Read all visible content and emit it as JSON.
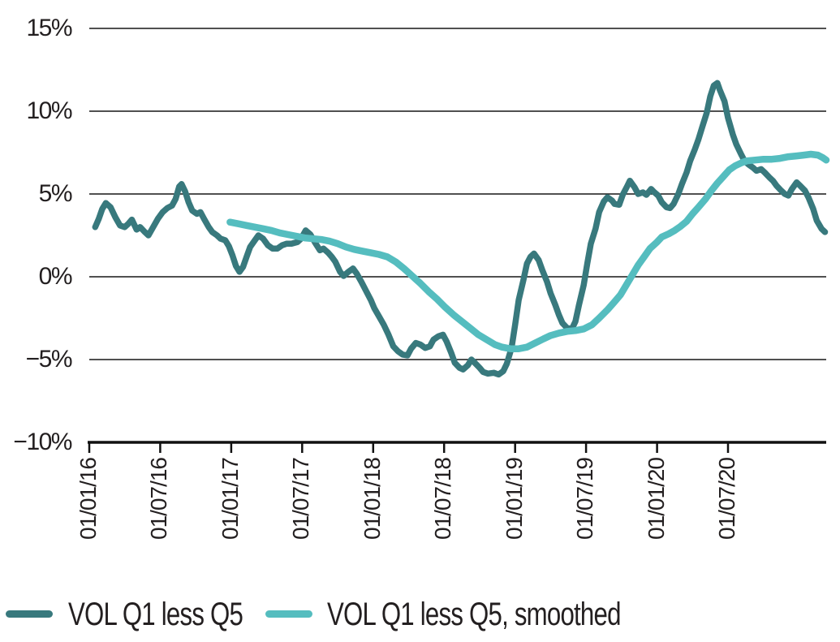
{
  "colors": {
    "background": "#ffffff",
    "grid_line": "#161616",
    "axis_line": "#111111",
    "text": "#231f20",
    "series_raw": "#38797d",
    "series_smoothed": "#55bdbf"
  },
  "legend": {
    "position": "bottom-left"
  },
  "chart_data": {
    "type": "line",
    "title": "",
    "xlabel": "",
    "ylabel": "",
    "grid": "horizontal",
    "legend_position": "bottom-left",
    "x_axis": {
      "unit": "months since 2016-01-01",
      "range_months": [
        0,
        62.3
      ],
      "tick_positions_months": [
        0,
        6,
        12,
        18,
        24,
        30,
        36,
        42,
        48,
        54
      ],
      "tick_labels": [
        "01/01/16",
        "01/07/16",
        "01/01/17",
        "01/07/17",
        "01/01/18",
        "01/07/18",
        "01/01/19",
        "01/07/19",
        "01/01/20",
        "01/07/20"
      ],
      "tick_label_rotation_deg": -90
    },
    "y_axis": {
      "unit": "percent",
      "range": [
        -10,
        15
      ],
      "tick_values": [
        15,
        10,
        5,
        0,
        -5,
        -10
      ],
      "tick_labels": [
        "15%",
        "10%",
        "5%",
        "0%",
        "−5%",
        "−10%"
      ]
    },
    "series": [
      {
        "name": "VOL Q1 less Q5",
        "color": "#38797d",
        "points": [
          [
            0.5,
            3.0
          ],
          [
            0.8,
            3.5
          ],
          [
            1.1,
            4.1
          ],
          [
            1.4,
            4.45
          ],
          [
            1.8,
            4.2
          ],
          [
            2.2,
            3.6
          ],
          [
            2.6,
            3.1
          ],
          [
            3.0,
            3.0
          ],
          [
            3.3,
            3.2
          ],
          [
            3.6,
            3.45
          ],
          [
            4.0,
            2.85
          ],
          [
            4.3,
            3.0
          ],
          [
            4.7,
            2.7
          ],
          [
            5.0,
            2.5
          ],
          [
            5.4,
            3.0
          ],
          [
            5.8,
            3.5
          ],
          [
            6.2,
            3.9
          ],
          [
            6.6,
            4.15
          ],
          [
            7.0,
            4.3
          ],
          [
            7.3,
            4.7
          ],
          [
            7.6,
            5.45
          ],
          [
            7.8,
            5.6
          ],
          [
            8.1,
            5.15
          ],
          [
            8.4,
            4.5
          ],
          [
            8.7,
            4.0
          ],
          [
            9.1,
            3.8
          ],
          [
            9.4,
            3.9
          ],
          [
            9.7,
            3.5
          ],
          [
            10.1,
            3.0
          ],
          [
            10.4,
            2.7
          ],
          [
            10.8,
            2.5
          ],
          [
            11.1,
            2.3
          ],
          [
            11.5,
            2.2
          ],
          [
            11.8,
            1.85
          ],
          [
            12.1,
            1.3
          ],
          [
            12.4,
            0.65
          ],
          [
            12.7,
            0.3
          ],
          [
            13.0,
            0.6
          ],
          [
            13.3,
            1.2
          ],
          [
            13.6,
            1.8
          ],
          [
            14.0,
            2.2
          ],
          [
            14.3,
            2.5
          ],
          [
            14.7,
            2.3
          ],
          [
            15.1,
            1.9
          ],
          [
            15.5,
            1.7
          ],
          [
            15.9,
            1.7
          ],
          [
            16.3,
            1.9
          ],
          [
            16.7,
            2.0
          ],
          [
            17.1,
            2.0
          ],
          [
            17.6,
            2.1
          ],
          [
            17.9,
            2.3
          ],
          [
            18.3,
            2.8
          ],
          [
            18.7,
            2.55
          ],
          [
            19.1,
            2.05
          ],
          [
            19.5,
            1.6
          ],
          [
            19.8,
            1.7
          ],
          [
            20.2,
            1.45
          ],
          [
            20.5,
            1.2
          ],
          [
            20.8,
            0.9
          ],
          [
            21.2,
            0.3
          ],
          [
            21.5,
            0.05
          ],
          [
            21.9,
            0.3
          ],
          [
            22.3,
            0.5
          ],
          [
            22.6,
            0.2
          ],
          [
            23.0,
            -0.3
          ],
          [
            23.4,
            -0.85
          ],
          [
            23.8,
            -1.4
          ],
          [
            24.1,
            -1.9
          ],
          [
            24.5,
            -2.4
          ],
          [
            24.9,
            -2.9
          ],
          [
            25.3,
            -3.5
          ],
          [
            25.7,
            -4.2
          ],
          [
            26.1,
            -4.5
          ],
          [
            26.5,
            -4.7
          ],
          [
            26.9,
            -4.75
          ],
          [
            27.2,
            -4.35
          ],
          [
            27.6,
            -4.0
          ],
          [
            28.0,
            -4.1
          ],
          [
            28.4,
            -4.3
          ],
          [
            28.8,
            -4.2
          ],
          [
            29.1,
            -3.8
          ],
          [
            29.5,
            -3.6
          ],
          [
            29.9,
            -3.5
          ],
          [
            30.2,
            -3.9
          ],
          [
            30.6,
            -4.6
          ],
          [
            30.9,
            -5.2
          ],
          [
            31.3,
            -5.5
          ],
          [
            31.6,
            -5.6
          ],
          [
            32.0,
            -5.35
          ],
          [
            32.3,
            -5.0
          ],
          [
            32.6,
            -5.2
          ],
          [
            33.0,
            -5.5
          ],
          [
            33.3,
            -5.75
          ],
          [
            33.7,
            -5.85
          ],
          [
            34.2,
            -5.8
          ],
          [
            34.6,
            -5.9
          ],
          [
            35.0,
            -5.7
          ],
          [
            35.3,
            -5.25
          ],
          [
            35.7,
            -4.3
          ],
          [
            36.0,
            -2.9
          ],
          [
            36.3,
            -1.4
          ],
          [
            36.7,
            -0.2
          ],
          [
            37.0,
            0.8
          ],
          [
            37.3,
            1.2
          ],
          [
            37.6,
            1.4
          ],
          [
            38.0,
            1.0
          ],
          [
            38.3,
            0.4
          ],
          [
            38.7,
            -0.3
          ],
          [
            39.0,
            -1.0
          ],
          [
            39.4,
            -1.7
          ],
          [
            39.7,
            -2.3
          ],
          [
            40.0,
            -2.8
          ],
          [
            40.4,
            -3.1
          ],
          [
            40.8,
            -3.15
          ],
          [
            41.1,
            -2.7
          ],
          [
            41.4,
            -1.7
          ],
          [
            41.8,
            -0.5
          ],
          [
            42.1,
            0.8
          ],
          [
            42.4,
            2.0
          ],
          [
            42.8,
            2.9
          ],
          [
            43.1,
            3.9
          ],
          [
            43.5,
            4.55
          ],
          [
            43.8,
            4.8
          ],
          [
            44.2,
            4.6
          ],
          [
            44.4,
            4.4
          ],
          [
            44.8,
            4.35
          ],
          [
            45.1,
            4.95
          ],
          [
            45.5,
            5.5
          ],
          [
            45.7,
            5.8
          ],
          [
            46.1,
            5.4
          ],
          [
            46.4,
            5.0
          ],
          [
            46.8,
            5.1
          ],
          [
            47.1,
            4.95
          ],
          [
            47.5,
            5.3
          ],
          [
            47.7,
            5.15
          ],
          [
            48.1,
            4.9
          ],
          [
            48.4,
            4.5
          ],
          [
            48.8,
            4.2
          ],
          [
            49.1,
            4.15
          ],
          [
            49.4,
            4.4
          ],
          [
            49.8,
            5.0
          ],
          [
            50.1,
            5.6
          ],
          [
            50.5,
            6.3
          ],
          [
            50.8,
            7.0
          ],
          [
            51.2,
            7.7
          ],
          [
            51.5,
            8.3
          ],
          [
            51.8,
            9.0
          ],
          [
            52.2,
            9.9
          ],
          [
            52.5,
            10.9
          ],
          [
            52.8,
            11.55
          ],
          [
            53.1,
            11.7
          ],
          [
            53.3,
            11.3
          ],
          [
            53.7,
            10.6
          ],
          [
            54.0,
            9.6
          ],
          [
            54.4,
            8.6
          ],
          [
            54.7,
            8.0
          ],
          [
            55.1,
            7.4
          ],
          [
            55.4,
            7.0
          ],
          [
            55.7,
            6.8
          ],
          [
            56.1,
            6.6
          ],
          [
            56.4,
            6.4
          ],
          [
            56.8,
            6.5
          ],
          [
            57.1,
            6.3
          ],
          [
            57.5,
            6.0
          ],
          [
            57.8,
            5.8
          ],
          [
            58.1,
            5.5
          ],
          [
            58.5,
            5.2
          ],
          [
            58.8,
            5.0
          ],
          [
            59.1,
            4.9
          ],
          [
            59.4,
            5.3
          ],
          [
            59.8,
            5.7
          ],
          [
            60.1,
            5.5
          ],
          [
            60.5,
            5.2
          ],
          [
            60.8,
            4.8
          ],
          [
            61.2,
            4.1
          ],
          [
            61.5,
            3.4
          ],
          [
            61.9,
            2.9
          ],
          [
            62.2,
            2.7
          ]
        ]
      },
      {
        "name": "VOL Q1 less Q5, smoothed",
        "color": "#55bdbf",
        "points": [
          [
            11.9,
            3.3
          ],
          [
            12.6,
            3.2
          ],
          [
            13.3,
            3.1
          ],
          [
            14.0,
            3.0
          ],
          [
            14.7,
            2.9
          ],
          [
            15.4,
            2.8
          ],
          [
            16.1,
            2.65
          ],
          [
            16.8,
            2.55
          ],
          [
            17.5,
            2.45
          ],
          [
            18.2,
            2.35
          ],
          [
            18.9,
            2.3
          ],
          [
            19.6,
            2.25
          ],
          [
            20.3,
            2.15
          ],
          [
            21.0,
            2.0
          ],
          [
            21.7,
            1.8
          ],
          [
            22.4,
            1.65
          ],
          [
            23.1,
            1.55
          ],
          [
            23.8,
            1.45
          ],
          [
            24.5,
            1.35
          ],
          [
            25.2,
            1.2
          ],
          [
            25.9,
            0.9
          ],
          [
            26.6,
            0.5
          ],
          [
            27.3,
            0.05
          ],
          [
            28.0,
            -0.4
          ],
          [
            28.7,
            -0.9
          ],
          [
            29.4,
            -1.35
          ],
          [
            30.1,
            -1.85
          ],
          [
            30.8,
            -2.3
          ],
          [
            31.5,
            -2.7
          ],
          [
            32.2,
            -3.1
          ],
          [
            32.9,
            -3.5
          ],
          [
            33.6,
            -3.8
          ],
          [
            34.3,
            -4.1
          ],
          [
            34.9,
            -4.25
          ],
          [
            35.6,
            -4.35
          ],
          [
            36.3,
            -4.35
          ],
          [
            37.0,
            -4.25
          ],
          [
            37.7,
            -4.0
          ],
          [
            38.4,
            -3.75
          ],
          [
            39.0,
            -3.55
          ],
          [
            39.7,
            -3.4
          ],
          [
            40.4,
            -3.3
          ],
          [
            41.1,
            -3.25
          ],
          [
            41.8,
            -3.15
          ],
          [
            42.5,
            -2.9
          ],
          [
            43.1,
            -2.5
          ],
          [
            43.8,
            -2.0
          ],
          [
            44.3,
            -1.6
          ],
          [
            44.9,
            -1.1
          ],
          [
            45.4,
            -0.5
          ],
          [
            45.9,
            0.1
          ],
          [
            46.4,
            0.7
          ],
          [
            46.9,
            1.2
          ],
          [
            47.4,
            1.7
          ],
          [
            48.0,
            2.1
          ],
          [
            48.4,
            2.4
          ],
          [
            49.0,
            2.6
          ],
          [
            49.5,
            2.8
          ],
          [
            50.0,
            3.05
          ],
          [
            50.5,
            3.35
          ],
          [
            51.0,
            3.8
          ],
          [
            51.5,
            4.2
          ],
          [
            52.1,
            4.7
          ],
          [
            52.6,
            5.2
          ],
          [
            53.1,
            5.65
          ],
          [
            53.6,
            6.05
          ],
          [
            54.1,
            6.45
          ],
          [
            54.6,
            6.7
          ],
          [
            55.2,
            6.9
          ],
          [
            55.6,
            7.0
          ],
          [
            56.3,
            7.05
          ],
          [
            57.0,
            7.1
          ],
          [
            57.7,
            7.1
          ],
          [
            58.4,
            7.15
          ],
          [
            59.1,
            7.25
          ],
          [
            59.8,
            7.3
          ],
          [
            60.4,
            7.35
          ],
          [
            61.0,
            7.4
          ],
          [
            61.6,
            7.35
          ],
          [
            62.0,
            7.2
          ],
          [
            62.3,
            7.05
          ]
        ]
      }
    ]
  }
}
